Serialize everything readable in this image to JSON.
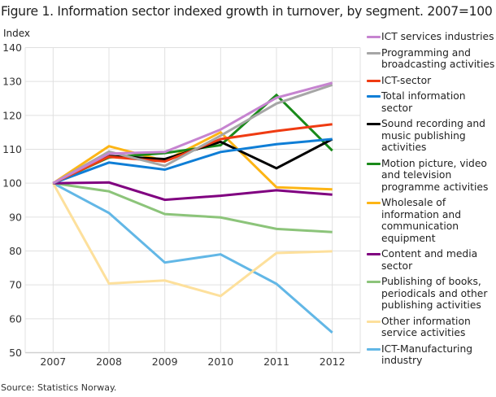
{
  "chart_data": {
    "type": "line",
    "title": "Figure 1. Information sector indexed growth in turnover, by segment. 2007=100",
    "xlabel": "",
    "ylabel": "Index",
    "x": [
      "2007",
      "2008",
      "2009",
      "2010",
      "2011",
      "2012"
    ],
    "ylim": [
      50,
      140
    ],
    "yticks": [
      140,
      130,
      120,
      110,
      100,
      90,
      80,
      70,
      60,
      50
    ],
    "grid": true,
    "legend_position": "right",
    "series": [
      {
        "name": "ICT services industries",
        "color": "#c684d0",
        "values": [
          100,
          108.7,
          109.2,
          115.8,
          125.2,
          129.6
        ]
      },
      {
        "name": "Programming and broadcasting activities",
        "color": "#a6a6a6",
        "values": [
          100,
          109.3,
          105.1,
          114.0,
          123.5,
          129.0
        ]
      },
      {
        "name": "ICT-sector",
        "color": "#ef3b12",
        "values": [
          100,
          107.8,
          106.4,
          113.0,
          115.4,
          117.4
        ]
      },
      {
        "name": "Total information sector",
        "color": "#0f7ed6",
        "values": [
          100,
          106.1,
          104.0,
          109.2,
          111.5,
          113.0
        ]
      },
      {
        "name": "Sound recording and music publishing activities",
        "color": "#000000",
        "values": [
          100,
          108.0,
          107.1,
          112.2,
          104.4,
          113.0
        ]
      },
      {
        "name": "Motion picture, video and television programme activities",
        "color": "#1a8a1a",
        "values": [
          100,
          107.6,
          108.9,
          111.2,
          126.0,
          109.6
        ]
      },
      {
        "name": "Wholesale of information and communication equipment",
        "color": "#fdb515",
        "values": [
          100,
          110.9,
          106.6,
          115.0,
          98.8,
          98.2
        ]
      },
      {
        "name": "Content and media sector",
        "color": "#800080",
        "values": [
          100,
          100.2,
          95.1,
          96.3,
          97.9,
          96.6
        ]
      },
      {
        "name": "Publishing of books, periodicals and other publishing activities",
        "color": "#8cc47a",
        "values": [
          100,
          97.6,
          90.9,
          89.9,
          86.5,
          85.6
        ]
      },
      {
        "name": "Other information service activities",
        "color": "#fde09c",
        "values": [
          100,
          70.4,
          71.3,
          66.7,
          79.4,
          79.9
        ]
      },
      {
        "name": "ICT-Manufacturing industry",
        "color": "#62b7e6",
        "values": [
          100,
          91.2,
          76.6,
          79.0,
          70.3,
          55.9
        ]
      }
    ],
    "source": "Source: Statistics Norway."
  }
}
